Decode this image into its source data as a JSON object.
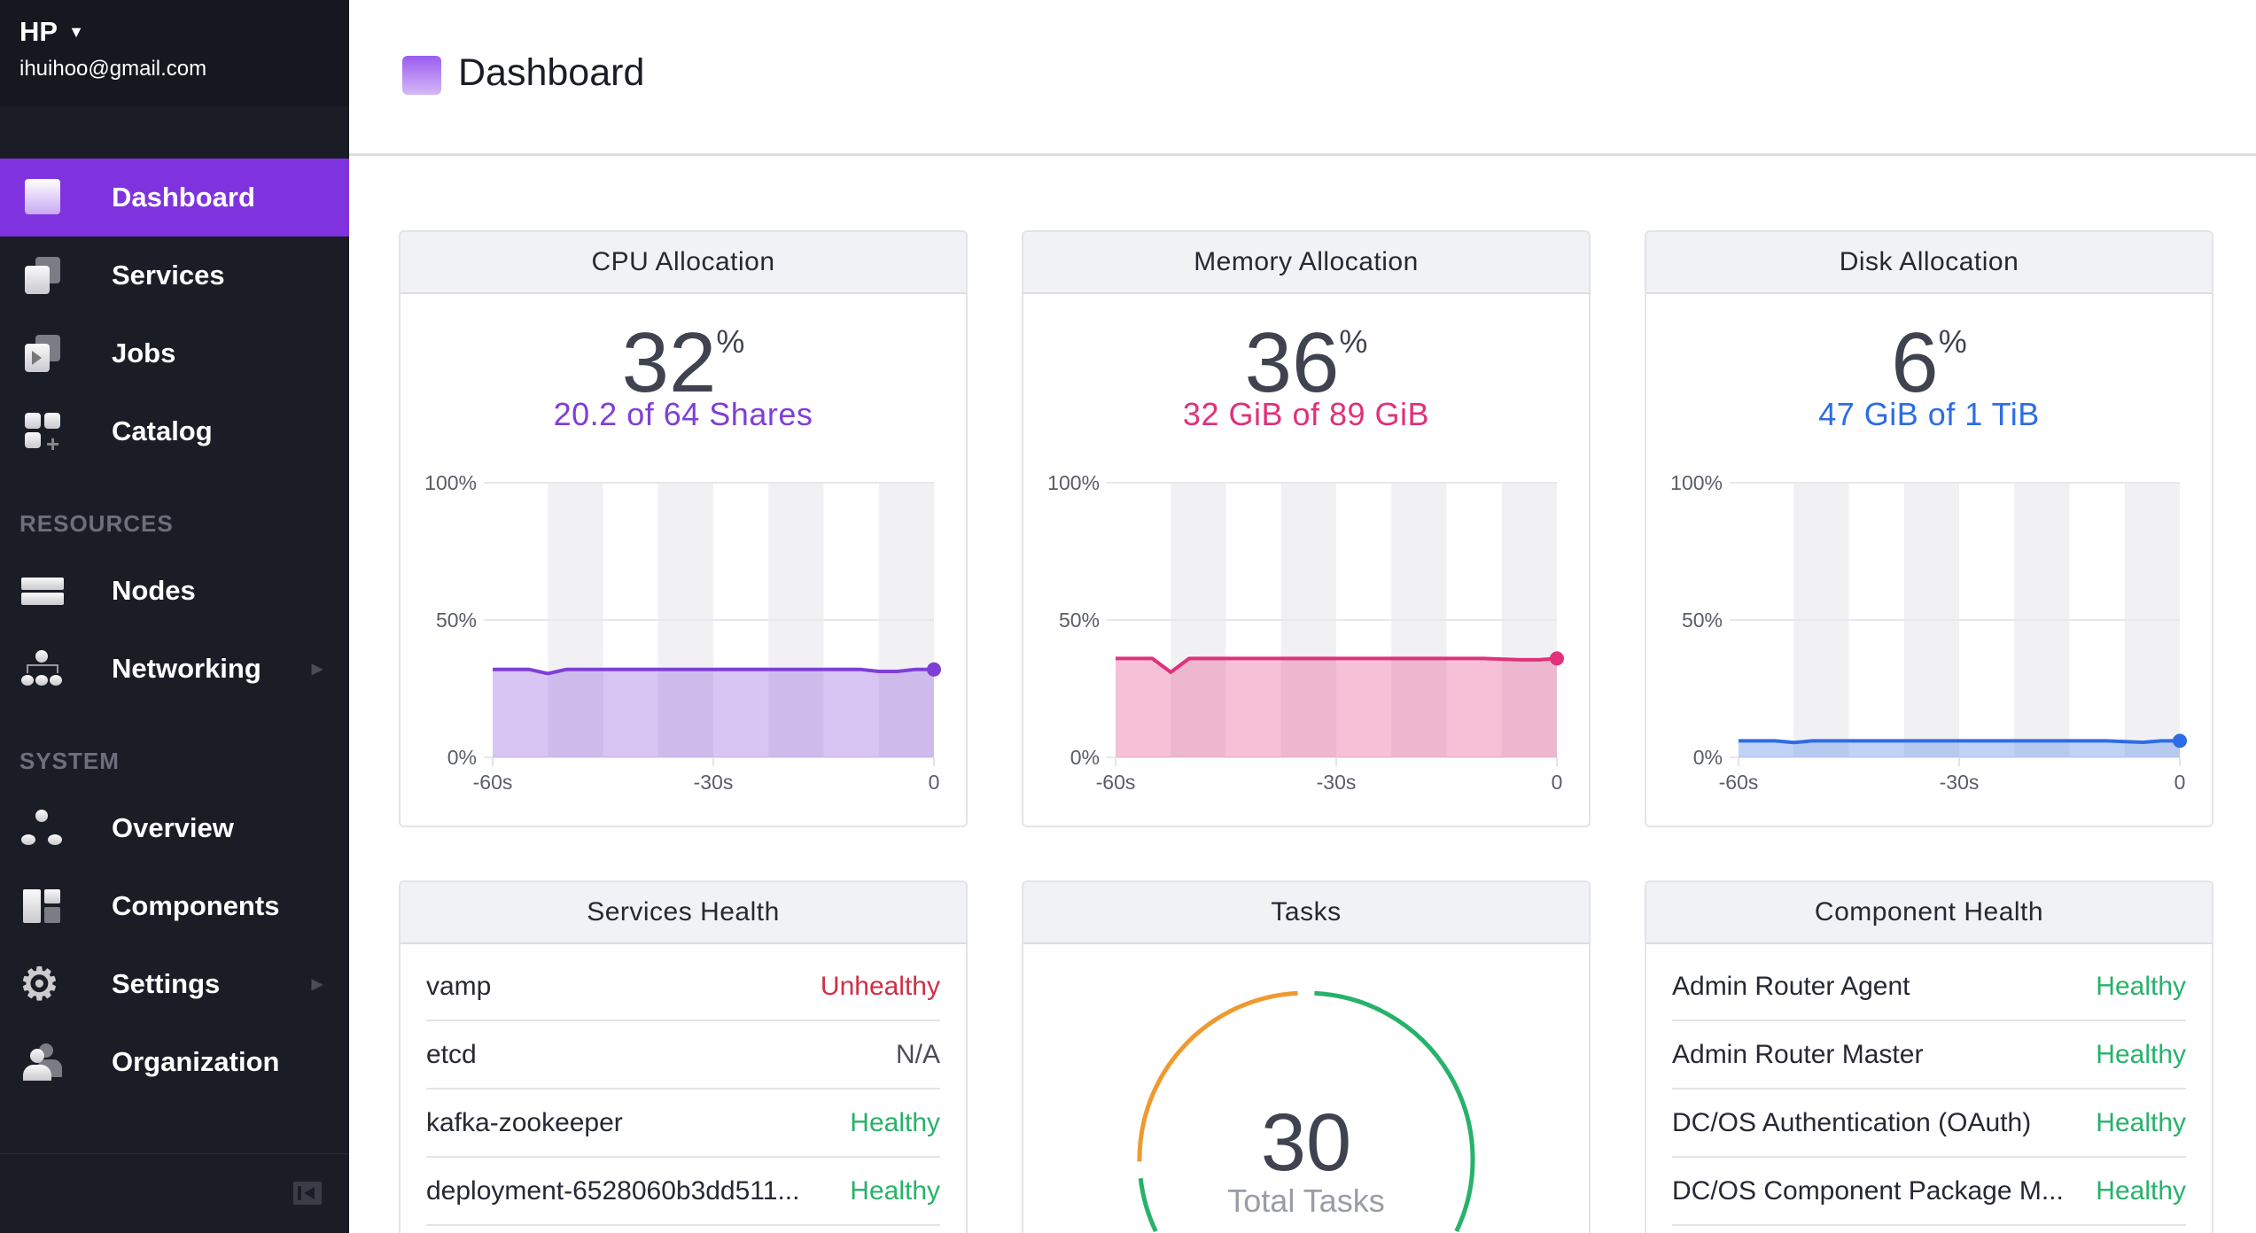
{
  "user": {
    "name": "HP",
    "email": "ihuihoo@gmail.com"
  },
  "nav": {
    "primary": [
      {
        "label": "Dashboard",
        "icon": "dashboard-icon",
        "active": true
      },
      {
        "label": "Services",
        "icon": "services-icon"
      },
      {
        "label": "Jobs",
        "icon": "jobs-icon"
      },
      {
        "label": "Catalog",
        "icon": "catalog-icon"
      }
    ],
    "resources_title": "RESOURCES",
    "resources": [
      {
        "label": "Nodes",
        "icon": "nodes-icon"
      },
      {
        "label": "Networking",
        "icon": "networking-icon",
        "submenu": true
      }
    ],
    "system_title": "SYSTEM",
    "system": [
      {
        "label": "Overview",
        "icon": "overview-icon"
      },
      {
        "label": "Components",
        "icon": "components-icon"
      },
      {
        "label": "Settings",
        "icon": "settings-icon",
        "submenu": true
      },
      {
        "label": "Organization",
        "icon": "organization-icon"
      }
    ]
  },
  "page": {
    "title": "Dashboard"
  },
  "colors": {
    "accent": "#7f33df",
    "cpu": "#7f3fd6",
    "memory": "#e0317a",
    "disk": "#2e6ce5",
    "healthy": "#27b26b",
    "unhealthy": "#cf2f47",
    "na": "#4a4d58",
    "tasks_running": "#27b26b",
    "tasks_staged": "#ee9a31"
  },
  "chart_data": [
    {
      "type": "area",
      "title": "CPU Allocation",
      "value": "32",
      "unit": "%",
      "detail": "20.2 of 64 Shares",
      "yticks": [
        "100%",
        "50%",
        "0%"
      ],
      "xticks": [
        "-60s",
        "-30s",
        "0"
      ],
      "ylim": [
        0,
        100
      ],
      "xlim": [
        -60,
        0
      ],
      "x": [
        -60,
        -55,
        -52.5,
        -50,
        -45,
        -40,
        -35,
        -30,
        -25,
        -20,
        -15,
        -10,
        -7.5,
        -5,
        -2.5,
        0
      ],
      "y": [
        32,
        32,
        30.5,
        32,
        32,
        32,
        32,
        32,
        32,
        32,
        32,
        32,
        31.3,
        31.3,
        32,
        32
      ]
    },
    {
      "type": "area",
      "title": "Memory Allocation",
      "value": "36",
      "unit": "%",
      "detail": "32 GiB of 89 GiB",
      "yticks": [
        "100%",
        "50%",
        "0%"
      ],
      "xticks": [
        "-60s",
        "-30s",
        "0"
      ],
      "ylim": [
        0,
        100
      ],
      "xlim": [
        -60,
        0
      ],
      "x": [
        -60,
        -55,
        -52.5,
        -50,
        -45,
        -40,
        -35,
        -30,
        -25,
        -20,
        -15,
        -10,
        -5,
        -2.5,
        0
      ],
      "y": [
        36,
        36,
        31,
        36,
        36,
        36,
        36,
        36,
        36,
        36,
        36,
        36,
        35.5,
        35.5,
        36
      ]
    },
    {
      "type": "area",
      "title": "Disk Allocation",
      "value": "6",
      "unit": "%",
      "detail": "47 GiB of 1 TiB",
      "yticks": [
        "100%",
        "50%",
        "0%"
      ],
      "xticks": [
        "-60s",
        "-30s",
        "0"
      ],
      "ylim": [
        0,
        100
      ],
      "xlim": [
        -60,
        0
      ],
      "x": [
        -60,
        -55,
        -52.5,
        -50,
        -40,
        -30,
        -20,
        -10,
        -5,
        -2.5,
        0
      ],
      "y": [
        6,
        6,
        5.4,
        6,
        6,
        6,
        6,
        6,
        5.5,
        6,
        6
      ]
    }
  ],
  "services_health": {
    "title": "Services Health",
    "rows": [
      {
        "name": "vamp",
        "status": "Unhealthy",
        "kind": "unhealthy"
      },
      {
        "name": "etcd",
        "status": "N/A",
        "kind": "na"
      },
      {
        "name": "kafka-zookeeper",
        "status": "Healthy",
        "kind": "healthy"
      },
      {
        "name": "deployment-6528060b3dd511...",
        "status": "Healthy",
        "kind": "healthy"
      }
    ]
  },
  "tasks": {
    "title": "Tasks",
    "total": "30",
    "label": "Total Tasks",
    "staged_fraction": 0.26
  },
  "component_health": {
    "title": "Component Health",
    "rows": [
      {
        "name": "Admin Router Agent",
        "status": "Healthy",
        "kind": "healthy"
      },
      {
        "name": "Admin Router Master",
        "status": "Healthy",
        "kind": "healthy"
      },
      {
        "name": "DC/OS Authentication (OAuth)",
        "status": "Healthy",
        "kind": "healthy"
      },
      {
        "name": "DC/OS Component Package M...",
        "status": "Healthy",
        "kind": "healthy"
      }
    ]
  }
}
